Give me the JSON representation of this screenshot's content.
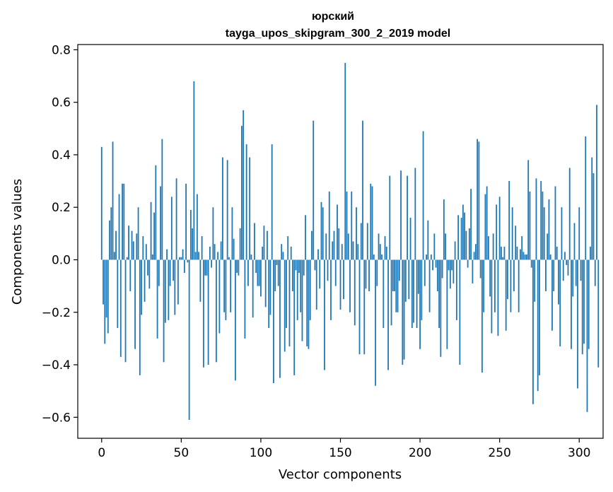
{
  "chart_data": {
    "type": "bar",
    "title_line1": "юрский",
    "title_line2": "tayga_upos_skipgram_300_2_2019 model",
    "xlabel": "Vector components",
    "ylabel": "Components values",
    "xlim": [
      -15,
      315
    ],
    "ylim": [
      -0.68,
      0.82
    ],
    "x_ticks": [
      0,
      50,
      100,
      150,
      200,
      250,
      300
    ],
    "x_tick_labels": [
      "0",
      "50",
      "100",
      "150",
      "200",
      "250",
      "300"
    ],
    "y_ticks": [
      -0.6,
      -0.4,
      -0.2,
      0.0,
      0.2,
      0.4,
      0.6,
      0.8
    ],
    "y_tick_labels": [
      "−0.6",
      "−0.4",
      "−0.2",
      "0.0",
      "0.2",
      "0.4",
      "0.6",
      "0.8"
    ],
    "bar_color": "#1f77b4",
    "grid": false,
    "values": [
      0.43,
      -0.17,
      -0.32,
      -0.22,
      -0.28,
      0.15,
      0.2,
      0.45,
      0.03,
      0.11,
      -0.26,
      0.25,
      -0.37,
      0.29,
      0.29,
      -0.39,
      0.01,
      0.13,
      -0.12,
      0.11,
      0.07,
      -0.34,
      0.1,
      0.2,
      -0.44,
      -0.21,
      0.09,
      -0.16,
      0.06,
      -0.06,
      -0.11,
      0.22,
      0.02,
      0.18,
      0.36,
      -0.3,
      -0.1,
      0.28,
      0.46,
      -0.39,
      -0.24,
      0.04,
      -0.23,
      -0.1,
      0.24,
      -0.08,
      -0.21,
      0.31,
      -0.17,
      0.01,
      0.01,
      0.04,
      -0.05,
      0.29,
      -0.01,
      -0.61,
      0.19,
      0.12,
      0.68,
      0.03,
      0.25,
      0.03,
      -0.16,
      0.09,
      -0.41,
      -0.06,
      -0.06,
      -0.4,
      0.05,
      -0.03,
      0.2,
      0.06,
      -0.39,
      0.03,
      -0.28,
      0.07,
      0.39,
      -0.2,
      -0.23,
      0.38,
      0.01,
      -0.2,
      0.2,
      0.08,
      -0.46,
      -0.05,
      -0.06,
      0.12,
      0.51,
      0.57,
      -0.3,
      0.44,
      -0.1,
      0.39,
      0.02,
      -0.22,
      0.14,
      -0.05,
      -0.1,
      -0.1,
      -0.14,
      0.05,
      0.13,
      -0.18,
      0.11,
      -0.26,
      -0.21,
      0.44,
      -0.47,
      -0.12,
      -0.02,
      -0.1,
      -0.45,
      0.06,
      0.03,
      -0.35,
      -0.26,
      0.09,
      -0.33,
      0.05,
      -0.12,
      -0.44,
      -0.04,
      -0.23,
      -0.05,
      -0.2,
      -0.31,
      -0.06,
      0.17,
      -0.33,
      -0.34,
      -0.23,
      0.11,
      0.53,
      -0.04,
      -0.19,
      0.04,
      -0.11,
      0.22,
      0.2,
      -0.42,
      0.1,
      -0.08,
      0.26,
      -0.23,
      0.07,
      0.11,
      -0.1,
      0.21,
      0.12,
      -0.19,
      0.06,
      -0.15,
      0.75,
      0.26,
      0.1,
      -0.2,
      0.26,
      0.07,
      -0.25,
      0.2,
      0.06,
      -0.36,
      0.14,
      0.53,
      -0.36,
      -0.11,
      0.14,
      -0.12,
      0.29,
      0.28,
      0.02,
      -0.48,
      -0.1,
      0.1,
      0.06,
      0.02,
      -0.26,
      0.09,
      0.05,
      -0.42,
      0.32,
      -0.25,
      -0.12,
      -0.12,
      -0.2,
      -0.2,
      -0.08,
      0.34,
      -0.4,
      -0.38,
      -0.16,
      0.32,
      -0.15,
      0.16,
      -0.26,
      -0.24,
      0.35,
      -0.26,
      -0.13,
      -0.34,
      -0.23,
      0.49,
      -0.1,
      0.02,
      0.15,
      -0.2,
      0.02,
      -0.04,
      0.1,
      -0.03,
      -0.12,
      -0.26,
      -0.37,
      -0.07,
      0.23,
      0.1,
      -0.34,
      -0.04,
      -0.11,
      -0.04,
      -0.09,
      0.07,
      -0.23,
      0.17,
      -0.4,
      0.16,
      0.21,
      0.18,
      0.11,
      -0.03,
      0.12,
      0.27,
      -0.09,
      0.03,
      0.06,
      0.46,
      0.45,
      -0.07,
      -0.43,
      -0.2,
      0.25,
      0.28,
      0.09,
      -0.14,
      -0.28,
      0.1,
      -0.2,
      0.21,
      -0.29,
      0.24,
      0.05,
      0.01,
      0.05,
      -0.27,
      -0.15,
      0.3,
      -0.2,
      0.2,
      -0.12,
      0.13,
      0.05,
      -0.2,
      0.04,
      0.09,
      0.03,
      0.02,
      0.02,
      0.38,
      0.26,
      -0.03,
      -0.55,
      -0.16,
      0.31,
      -0.5,
      -0.44,
      0.3,
      0.26,
      0.2,
      -0.12,
      0.1,
      0.23,
      0.02,
      -0.27,
      -0.12,
      0.28,
      0.05,
      -0.17,
      -0.33,
      0.2,
      -0.08,
      0.03,
      -0.02,
      -0.06,
      0.35,
      -0.34,
      -0.14,
      0.14,
      -0.1,
      -0.49,
      0.2,
      -0.08,
      -0.36,
      -0.32,
      0.47,
      -0.58,
      -0.34,
      0.05,
      0.39,
      0.33,
      -0.1,
      0.59,
      -0.41
    ]
  }
}
